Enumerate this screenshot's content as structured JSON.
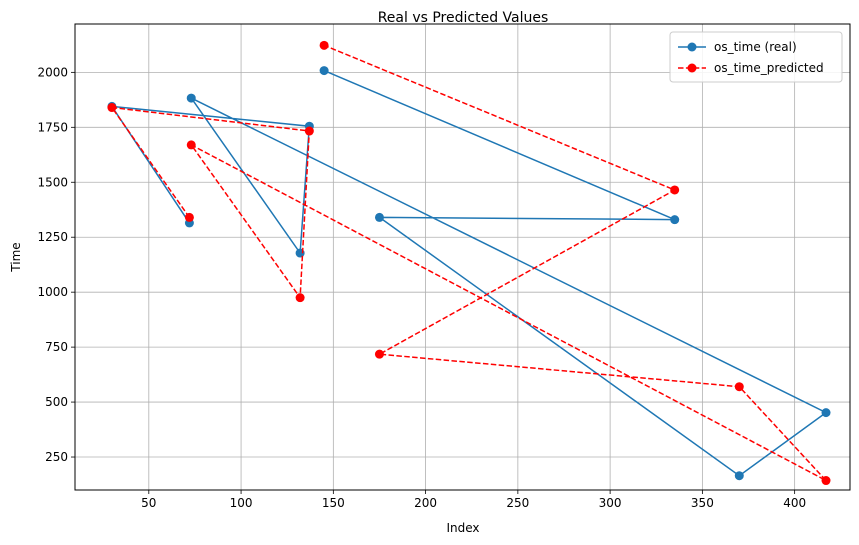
{
  "chart_data": {
    "type": "line",
    "title": "Real vs Predicted Values",
    "xlabel": "Index",
    "ylabel": "Time",
    "xlim": [
      10,
      430
    ],
    "ylim": [
      100,
      2220
    ],
    "xticks": [
      50,
      100,
      150,
      200,
      250,
      300,
      350,
      400
    ],
    "yticks": [
      250,
      500,
      750,
      1000,
      1250,
      1500,
      1750,
      2000
    ],
    "grid": true,
    "legend_position": "top-right",
    "series": [
      {
        "name": "os_time (real)",
        "color": "#1f77b4",
        "style": "solid",
        "marker": "circle",
        "points": [
          {
            "x": 72,
            "y": 1315
          },
          {
            "x": 30,
            "y": 1845
          },
          {
            "x": 137,
            "y": 1755
          },
          {
            "x": 132,
            "y": 1178
          },
          {
            "x": 73,
            "y": 1883
          },
          {
            "x": 417,
            "y": 452
          },
          {
            "x": 370,
            "y": 165
          },
          {
            "x": 175,
            "y": 1340
          },
          {
            "x": 335,
            "y": 1330
          },
          {
            "x": 145,
            "y": 2008
          }
        ]
      },
      {
        "name": "os_time_predicted",
        "color": "#ff0000",
        "style": "dashed",
        "marker": "circle",
        "points": [
          {
            "x": 72,
            "y": 1340
          },
          {
            "x": 30,
            "y": 1840
          },
          {
            "x": 137,
            "y": 1733
          },
          {
            "x": 132,
            "y": 975
          },
          {
            "x": 73,
            "y": 1670
          },
          {
            "x": 417,
            "y": 143
          },
          {
            "x": 370,
            "y": 570
          },
          {
            "x": 175,
            "y": 718
          },
          {
            "x": 335,
            "y": 1465
          },
          {
            "x": 145,
            "y": 2123
          }
        ]
      }
    ]
  }
}
